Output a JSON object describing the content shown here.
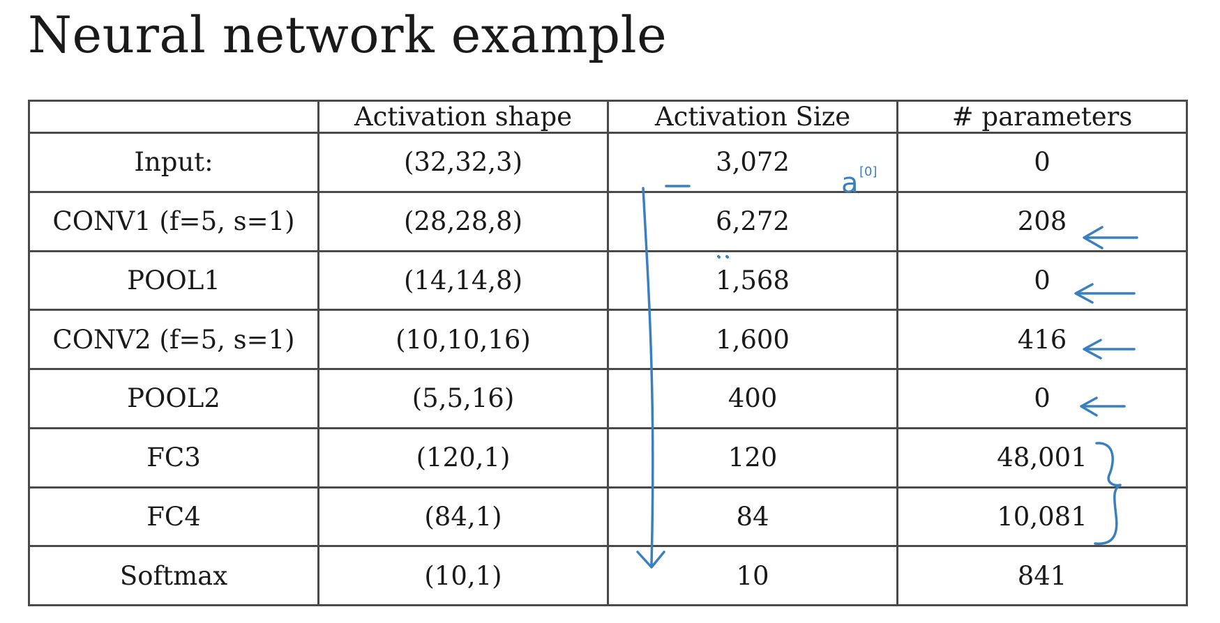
{
  "title": "Neural network example",
  "table": {
    "columns": [
      "",
      "Activation shape",
      "Activation Size",
      "# parameters"
    ],
    "rows": [
      {
        "layer": "Input:",
        "shape": "(32,32,3)",
        "size": "3,072",
        "params": "0"
      },
      {
        "layer": "CONV1 (f=5, s=1)",
        "shape": "(28,28,8)",
        "size": "6,272",
        "params": "208"
      },
      {
        "layer": "POOL1",
        "shape": "(14,14,8)",
        "size": "1,568",
        "params": "0"
      },
      {
        "layer": "CONV2  (f=5, s=1)",
        "shape": "(10,10,16)",
        "size": "1,600",
        "params": "416"
      },
      {
        "layer": "POOL2",
        "shape": "(5,5,16)",
        "size": "400",
        "params": "0"
      },
      {
        "layer": "FC3",
        "shape": "(120,1)",
        "size": "120",
        "params": "48,001"
      },
      {
        "layer": "FC4",
        "shape": "(84,1)",
        "size": "84",
        "params": "10,081"
      },
      {
        "layer": "Softmax",
        "shape": "(10,1)",
        "size": "10",
        "params": "841"
      }
    ]
  },
  "annotations": {
    "ink_color": "#3a7fc2",
    "activation_label": "a",
    "activation_superscript": "[0]"
  }
}
